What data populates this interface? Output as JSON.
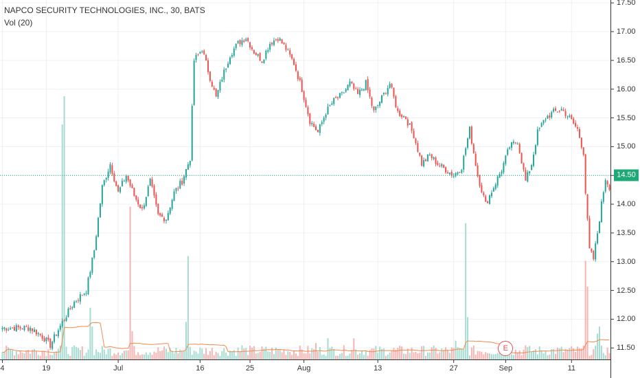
{
  "header": {
    "title": "NAPCO SECURITY TECHNOLOGIES, INC., 30, BATS",
    "volume_label": "Vol (20)"
  },
  "last_price_label": "14.50",
  "earnings_marker": "E",
  "colors": {
    "up": "#26a69a",
    "down": "#ef5350",
    "up_vol": "#a8dcd2",
    "down_vol": "#f5b5b3",
    "vol_ma": "#f08a4b",
    "grid": "#edf0f3",
    "price_line": "#20a978"
  },
  "chart_data": {
    "type": "candlestick",
    "interval": "30 min",
    "ylim": [
      11.3,
      17.55
    ],
    "y_ticks": [
      "11.50",
      "12.00",
      "12.50",
      "13.00",
      "13.50",
      "14.00",
      "14.50",
      "15.00",
      "15.50",
      "16.00",
      "16.50",
      "17.00",
      "17.50"
    ],
    "x_ticks": [
      "4",
      "19",
      "Jul",
      "16",
      "25",
      "Aug",
      "13",
      "27",
      "Sep",
      "11"
    ],
    "last_price": 14.5,
    "anchors": [
      [
        0,
        11.85
      ],
      [
        14,
        11.85
      ],
      [
        20,
        11.7
      ],
      [
        24,
        11.55
      ],
      [
        30,
        11.95
      ],
      [
        36,
        12.3
      ],
      [
        42,
        12.5
      ],
      [
        46,
        13.2
      ],
      [
        50,
        14.3
      ],
      [
        54,
        14.7
      ],
      [
        58,
        14.2
      ],
      [
        62,
        14.5
      ],
      [
        66,
        14.15
      ],
      [
        70,
        13.9
      ],
      [
        74,
        14.4
      ],
      [
        78,
        13.8
      ],
      [
        82,
        13.75
      ],
      [
        86,
        14.2
      ],
      [
        90,
        14.4
      ],
      [
        94,
        14.8
      ],
      [
        96,
        16.5
      ],
      [
        100,
        16.7
      ],
      [
        104,
        16.2
      ],
      [
        107,
        15.85
      ],
      [
        110,
        16.2
      ],
      [
        114,
        16.6
      ],
      [
        118,
        16.8
      ],
      [
        122,
        16.9
      ],
      [
        126,
        16.65
      ],
      [
        130,
        16.5
      ],
      [
        134,
        16.8
      ],
      [
        138,
        16.9
      ],
      [
        142,
        16.7
      ],
      [
        146,
        16.45
      ],
      [
        150,
        16.0
      ],
      [
        154,
        15.45
      ],
      [
        158,
        15.25
      ],
      [
        162,
        15.6
      ],
      [
        166,
        15.8
      ],
      [
        170,
        15.9
      ],
      [
        174,
        16.1
      ],
      [
        178,
        15.9
      ],
      [
        182,
        16.1
      ],
      [
        186,
        15.6
      ],
      [
        190,
        15.85
      ],
      [
        194,
        16.1
      ],
      [
        198,
        15.6
      ],
      [
        202,
        15.5
      ],
      [
        206,
        15.2
      ],
      [
        210,
        14.7
      ],
      [
        214,
        14.85
      ],
      [
        218,
        14.7
      ],
      [
        222,
        14.6
      ],
      [
        226,
        14.5
      ],
      [
        230,
        14.65
      ],
      [
        234,
        15.3
      ],
      [
        238,
        14.5
      ],
      [
        242,
        14.0
      ],
      [
        246,
        14.3
      ],
      [
        250,
        14.6
      ],
      [
        254,
        15.0
      ],
      [
        258,
        15.1
      ],
      [
        262,
        14.4
      ],
      [
        265,
        14.7
      ],
      [
        268,
        15.25
      ],
      [
        272,
        15.5
      ],
      [
        276,
        15.6
      ],
      [
        280,
        15.65
      ],
      [
        284,
        15.5
      ],
      [
        288,
        15.3
      ],
      [
        291,
        14.9
      ],
      [
        292,
        14.2
      ],
      [
        294,
        13.2
      ],
      [
        296,
        13.05
      ],
      [
        298,
        13.5
      ],
      [
        300,
        14.0
      ],
      [
        302,
        14.45
      ],
      [
        304,
        14.3
      ]
    ],
    "volume_spikes": [
      [
        30,
        10.0
      ],
      [
        31,
        11.2
      ],
      [
        44,
        2.2
      ],
      [
        45,
        1.4
      ],
      [
        64,
        6.5
      ],
      [
        65,
        1.2
      ],
      [
        92,
        1.6
      ],
      [
        93,
        4.4
      ],
      [
        120,
        0.6
      ],
      [
        157,
        0.7
      ],
      [
        163,
        0.9
      ],
      [
        176,
        0.9
      ],
      [
        227,
        0.8
      ],
      [
        232,
        5.8
      ],
      [
        233,
        1.8
      ],
      [
        262,
        0.6
      ],
      [
        292,
        4.2
      ],
      [
        293,
        3.1
      ],
      [
        298,
        1.1
      ],
      [
        299,
        1.4
      ]
    ]
  }
}
